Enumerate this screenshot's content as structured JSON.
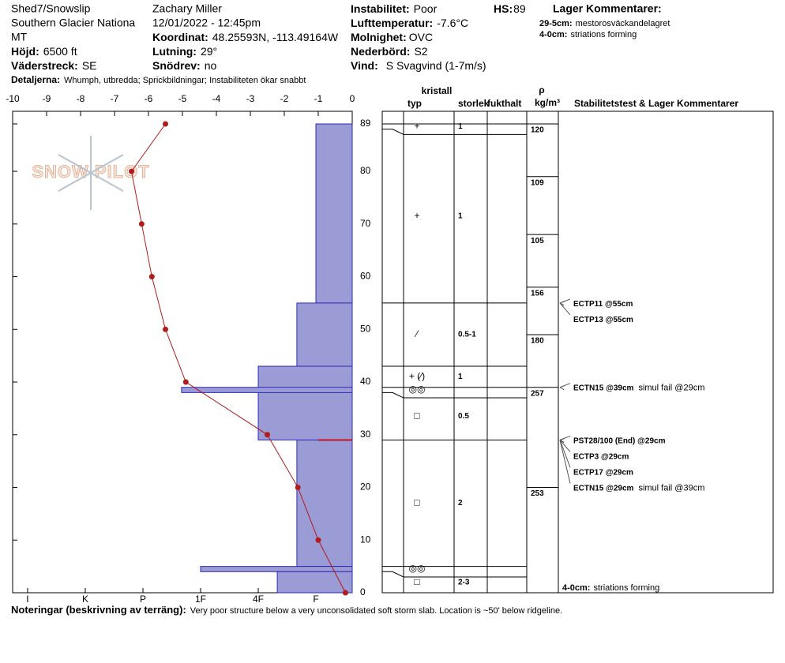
{
  "header": {
    "site": "Shed7/Snowslip",
    "area": "Southern Glacier Nationa",
    "state": "MT",
    "elevation": {
      "label": "Höjd:",
      "value": "6500 ft"
    },
    "aspect": {
      "label": "Väderstreck:",
      "value": "SE"
    },
    "observer": "Zachary Miller",
    "datetime": "12/01/2022 - 12:45pm",
    "coordinates": {
      "label": "Koordinat:",
      "value": "48.25593N, -113.49164W"
    },
    "slope": {
      "label": "Lutning:",
      "value": "29°"
    },
    "wind_loading": {
      "label": "Snödrev:",
      "value": "no"
    },
    "instability": {
      "label": "Instabilitet:",
      "value": "Poor"
    },
    "air_temp": {
      "label": "Lufttemperatur:",
      "value": "-7.6°C"
    },
    "sky": {
      "label": "Molnighet:",
      "value": "OVC"
    },
    "precip": {
      "label": "Nederbörd:",
      "value": "S2"
    },
    "wind": {
      "label": "Vind:",
      "value": "S Svagvind (1-7m/s)"
    },
    "hs": {
      "label": "HS:",
      "value": 89
    },
    "layer_comments_title": "Lager Kommentarer:",
    "layer_comments": [
      {
        "range": "29-5cm:",
        "text": "mestorosväckandelagret"
      },
      {
        "range": "4-0cm:",
        "text": "striations forming"
      }
    ],
    "details": {
      "label": "Detaljerna:",
      "value": "Whumph, utbredda;  Sprickbildningar;  Instabiliteten ökar snabbt"
    },
    "logo": "SNOW PILOT"
  },
  "chart_data": {
    "type": "snowprofile",
    "xlim": [
      -10,
      0
    ],
    "xticks": [
      -10,
      -9,
      -8,
      -7,
      -6,
      -5,
      -4,
      -3,
      -2,
      -1,
      0
    ],
    "ylim": [
      0,
      89
    ],
    "yticks": [
      0,
      10,
      20,
      30,
      40,
      50,
      60,
      70,
      80,
      89
    ],
    "hardness_lim": [
      0.37,
      6.26
    ],
    "hardness_ticks": [
      {
        "value": 6,
        "label": "I"
      },
      {
        "value": 5,
        "label": "K"
      },
      {
        "value": 4,
        "label": "P"
      },
      {
        "value": 3,
        "label": "1F"
      },
      {
        "value": 2,
        "label": "4F"
      },
      {
        "value": 1,
        "label": "F"
      }
    ],
    "temperature": {
      "color": "#b01c1c",
      "heights": [
        89,
        80,
        70,
        60,
        50,
        40,
        30,
        20,
        10,
        0
      ],
      "values": [
        -5.5,
        -6.5,
        -6.2,
        -5.9,
        -5.5,
        -4.9,
        -2.5,
        -1.6,
        -1.0,
        -0.2
      ]
    },
    "hardness_color": "#9b9bd6",
    "hardness_stroke": "#2b2bb8",
    "layers": [
      {
        "top": 89,
        "bottom": 55,
        "hardness": 1
      },
      {
        "top": 55,
        "bottom": 43,
        "hardness": 1.33
      },
      {
        "top": 43,
        "bottom": 29,
        "hardness": 2
      },
      {
        "top": 39,
        "bottom": 38,
        "hardness": 3.33
      },
      {
        "top": 29,
        "bottom": 5,
        "hardness": 1.33
      },
      {
        "top": 5,
        "bottom": 4,
        "hardness": 3
      },
      {
        "top": 4,
        "bottom": 0,
        "hardness": 1.67
      }
    ],
    "critical_height": 29,
    "critical_color": "#c0141e"
  },
  "table": {
    "headers": {
      "crystal": "kristall",
      "form": "typ",
      "size": "storlek",
      "moisture": "fukthalt",
      "rho": "ρ",
      "density_unit": "kg/m³",
      "tests": "Stabilitetstest & Lager Kommentarer"
    },
    "grains": [
      {
        "top": 89,
        "bottom": 88,
        "form": "+",
        "size": "1"
      },
      {
        "top": 88,
        "bottom": 55,
        "form": "+",
        "size": "1"
      },
      {
        "top": 55,
        "bottom": 43,
        "form": "⁄",
        "size": "0.5-1"
      },
      {
        "top": 43,
        "bottom": 39,
        "form": "+ (⁄)",
        "size": "1"
      },
      {
        "top": 39,
        "bottom": 38,
        "form": "◎◎"
      },
      {
        "top": 38,
        "bottom": 29,
        "form": "□",
        "size": "0.5"
      },
      {
        "top": 29,
        "bottom": 5,
        "form": "□",
        "size": "2"
      },
      {
        "top": 5,
        "bottom": 4,
        "form": "◎◎"
      },
      {
        "top": 4,
        "bottom": 0,
        "form": "□",
        "size": "2-3"
      }
    ],
    "density": [
      {
        "height": 89,
        "value": 120
      },
      {
        "height": 79,
        "value": 109
      },
      {
        "height": 68,
        "value": 105
      },
      {
        "height": 58,
        "value": 156
      },
      {
        "height": 49,
        "value": 180
      },
      {
        "height": 39,
        "value": 257
      },
      {
        "height": 20,
        "value": 253
      }
    ],
    "tests": [
      {
        "height": 55,
        "name": "ECTP11 @55cm"
      },
      {
        "height": 55,
        "name": "ECTP13 @55cm"
      },
      {
        "height": 39,
        "name": "ECTN15 @39cm",
        "comment": "simul fail @29cm"
      },
      {
        "height": 29,
        "name": "PST28/100 (End) @29cm"
      },
      {
        "height": 29,
        "name": "ECTP3 @29cm"
      },
      {
        "height": 29,
        "name": "ECTP17 @29cm"
      },
      {
        "height": 29,
        "name": "ECTN15 @29cm",
        "comment": "simul fail @39cm"
      }
    ]
  },
  "footer": {
    "label": "Noteringar (beskrivning av terräng):",
    "value": "Very poor structure below a very unconsolidated soft storm slab. Location is ~50' below ridgeline."
  }
}
